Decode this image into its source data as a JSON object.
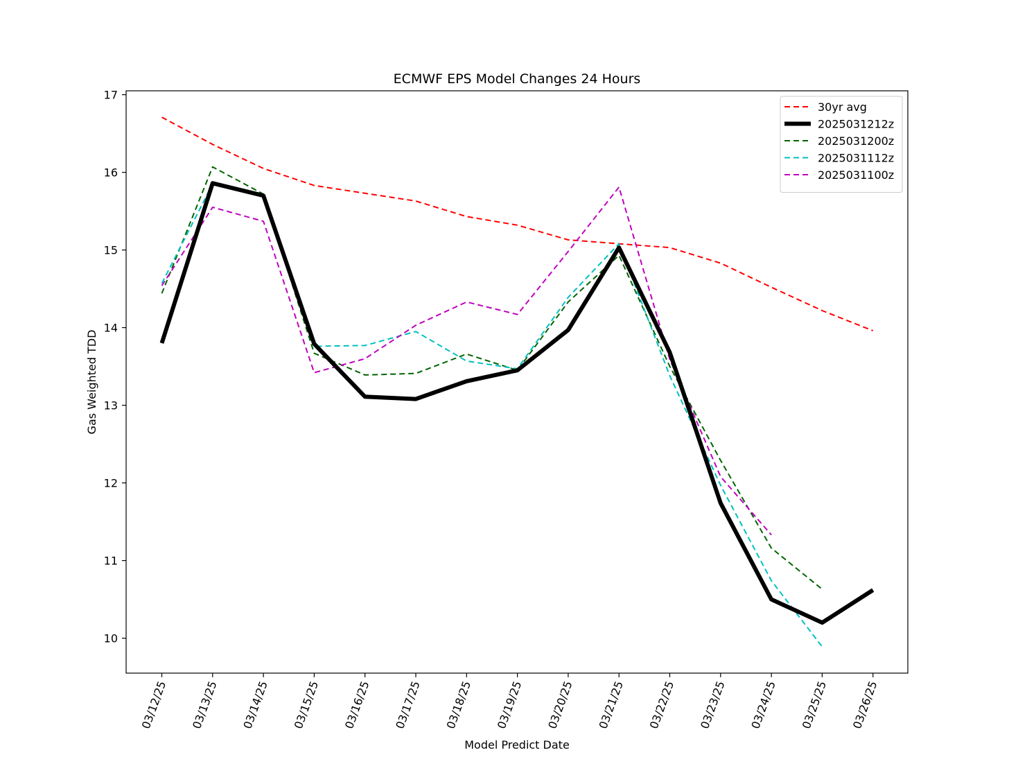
{
  "chart_data": {
    "type": "line",
    "title": "ECMWF EPS Model Changes 24 Hours",
    "xlabel": "Model Predict Date",
    "ylabel": "Gas Weighted TDD",
    "categories": [
      "03/12/25",
      "03/13/25",
      "03/14/25",
      "03/15/25",
      "03/16/25",
      "03/17/25",
      "03/18/25",
      "03/19/25",
      "03/20/25",
      "03/21/25",
      "03/22/25",
      "03/23/25",
      "03/24/25",
      "03/25/25",
      "03/26/25"
    ],
    "ylim": [
      9.55,
      17.05
    ],
    "yticks": [
      10,
      11,
      12,
      13,
      14,
      15,
      16,
      17
    ],
    "grid": false,
    "legend_position": "top-right",
    "series": [
      {
        "name": "30yr avg",
        "color": "#ff0000",
        "style": "dashed",
        "values": [
          16.71,
          16.36,
          16.05,
          15.83,
          15.73,
          15.63,
          15.43,
          15.32,
          15.13,
          15.08,
          15.03,
          14.83,
          14.52,
          14.22,
          13.96
        ]
      },
      {
        "name": "2025031212z",
        "color": "#000000",
        "style": "solid",
        "values": [
          13.8,
          15.86,
          15.7,
          13.79,
          13.11,
          13.08,
          13.31,
          13.45,
          13.97,
          15.03,
          13.68,
          11.74,
          10.5,
          10.2,
          10.62
        ]
      },
      {
        "name": "2025031200z",
        "color": "#006400",
        "style": "dashed",
        "values": [
          14.44,
          16.07,
          15.72,
          13.67,
          13.39,
          13.41,
          13.66,
          13.45,
          14.33,
          14.93,
          13.5,
          12.29,
          11.16,
          10.63,
          null
        ]
      },
      {
        "name": "2025031112z",
        "color": "#00bfbf",
        "style": "dashed",
        "values": [
          14.57,
          15.85,
          15.69,
          13.76,
          13.77,
          13.95,
          13.57,
          13.47,
          14.39,
          15.08,
          13.38,
          11.97,
          10.74,
          9.89,
          null
        ]
      },
      {
        "name": "2025031100z",
        "color": "#bf00bf",
        "style": "dashed",
        "values": [
          14.54,
          15.55,
          15.37,
          13.42,
          13.6,
          14.03,
          14.33,
          14.17,
          14.98,
          15.81,
          13.59,
          12.08,
          11.33,
          null,
          null
        ]
      }
    ]
  }
}
